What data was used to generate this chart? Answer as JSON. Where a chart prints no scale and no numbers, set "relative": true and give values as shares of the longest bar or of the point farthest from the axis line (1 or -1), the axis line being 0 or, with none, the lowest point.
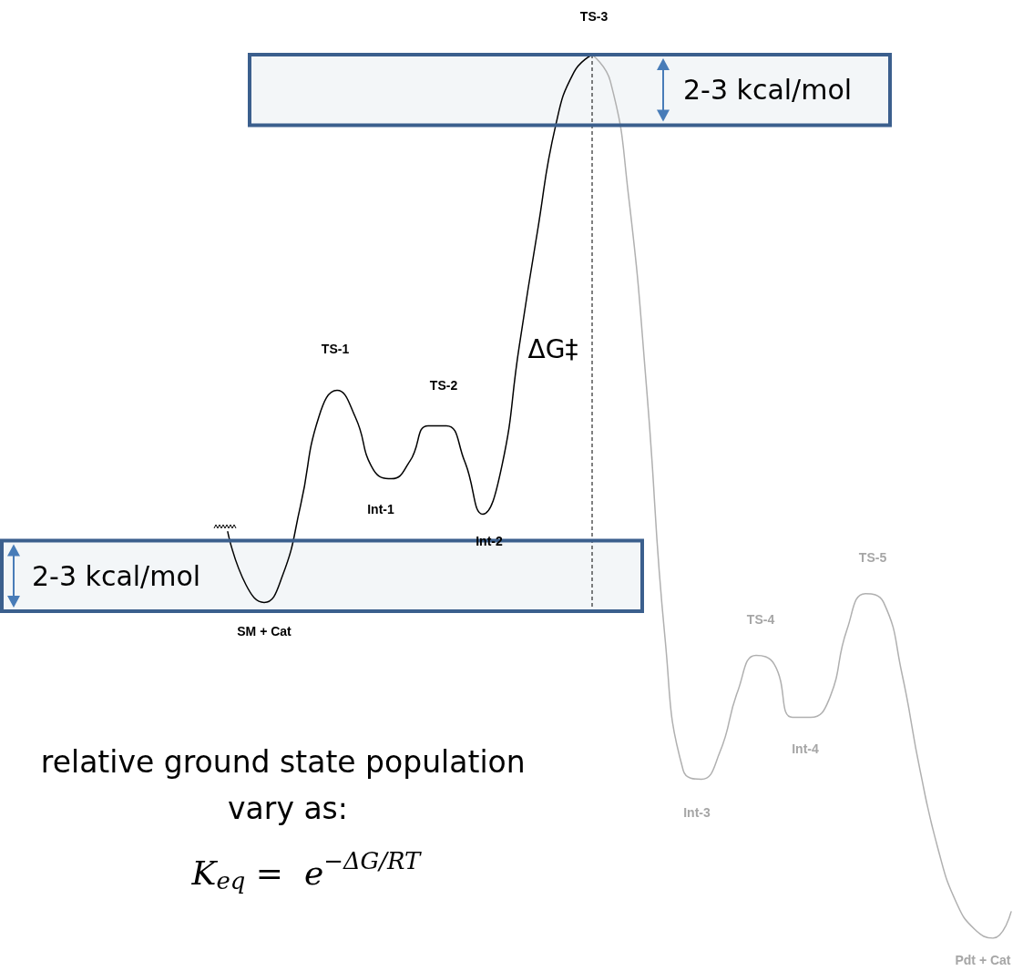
{
  "chart_data": {
    "type": "line",
    "relative": true,
    "marker": "none",
    "line_style": "solid",
    "categories": [
      null,
      null,
      null,
      null,
      null,
      null,
      null,
      null,
      null,
      null,
      null,
      null,
      null,
      null,
      null,
      null,
      null,
      null,
      null,
      null,
      null,
      null,
      null,
      null,
      null,
      null,
      null,
      null,
      null,
      null,
      null,
      null,
      null,
      null,
      null,
      null,
      null,
      null,
      null,
      null,
      null,
      null,
      null,
      null
    ],
    "series": [
      {
        "color": "#000000",
        "values": [
          0.46,
          0.4,
          0.38,
          0.41,
          0.49,
          0.59,
          0.62,
          0.59,
          0.53,
          0.52,
          0.54,
          0.58,
          0.58,
          0.54,
          0.48,
          0.53,
          0.67,
          0.8,
          0.92,
          0.98,
          1,
          null,
          null,
          null,
          null,
          null,
          null,
          null,
          null,
          null,
          null,
          null,
          null,
          null,
          null,
          null,
          null,
          null,
          null,
          null,
          null,
          null,
          null,
          null
        ]
      },
      {
        "color": "#b0b0b0",
        "values": [
          null,
          null,
          null,
          null,
          null,
          null,
          null,
          null,
          null,
          null,
          null,
          null,
          null,
          null,
          null,
          null,
          null,
          null,
          null,
          null,
          1,
          0.97,
          0.84,
          0.62,
          0.34,
          0.19,
          0.18,
          0.21,
          0.28,
          0.32,
          0.31,
          0.25,
          0.25,
          0.27,
          0.35,
          0.39,
          0.38,
          0.3,
          0.19,
          0.1,
          0.04,
          0.01,
          0,
          0.03
        ]
      }
    ],
    "bands": [
      {
        "axis": "y",
        "from": 0.92,
        "to": 1.0,
        "label": "2-3 kcal/mol",
        "color": "#3b5f8d"
      },
      {
        "axis": "y",
        "from": 0.37,
        "to": 0.45,
        "label": "2-3 kcal/mol",
        "color": "#3b5f8d"
      }
    ],
    "annotations": [
      "TS-3",
      "TS-1",
      "TS-2",
      "Int-1",
      "Int-2",
      "SM + Cat",
      "ΔG‡",
      "TS-4",
      "TS-5",
      "Int-4",
      "Int-3",
      "Pdt + Cat",
      "relative ground state population vary as:",
      "K$_{eq}$ =  e$^{−ΔG/RT}$"
    ]
  }
}
